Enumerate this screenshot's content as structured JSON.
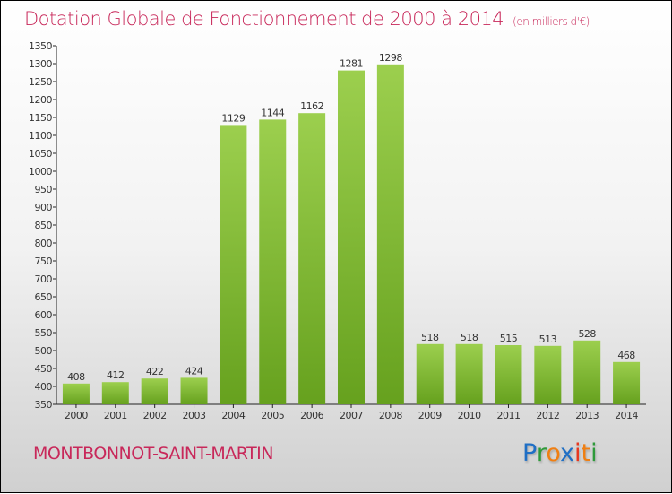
{
  "title": "Dotation Globale de Fonctionnement de 2000 à 2014",
  "unit_label": "(en milliers d'€)",
  "city": "MONTBONNOT-SAINT-MARTIN",
  "logo": {
    "letters": [
      "P",
      "r",
      "o",
      "x",
      "i",
      "t",
      "i"
    ],
    "colors": [
      "#1f6fc5",
      "#2e9a3a",
      "#f07f12",
      "#1f6fc5",
      "#e8361e",
      "#f07f12",
      "#2e9a3a"
    ]
  },
  "colors": {
    "bar_top": "#9ccf4e",
    "bar_bottom": "#66a11e",
    "title": "#c8285a"
  },
  "chart_data": {
    "type": "bar",
    "title": "Dotation Globale de Fonctionnement de 2000 à 2014",
    "xlabel": "",
    "ylabel": "",
    "categories": [
      "2000",
      "2001",
      "2002",
      "2003",
      "2004",
      "2005",
      "2006",
      "2007",
      "2008",
      "2009",
      "2010",
      "2011",
      "2012",
      "2013",
      "2014"
    ],
    "values": [
      408,
      412,
      422,
      424,
      1129,
      1144,
      1162,
      1281,
      1298,
      518,
      518,
      515,
      513,
      528,
      468
    ],
    "ylim": [
      350,
      1350
    ],
    "yticks": [
      350,
      400,
      450,
      500,
      550,
      600,
      650,
      700,
      750,
      800,
      850,
      900,
      950,
      1000,
      1050,
      1100,
      1150,
      1200,
      1250,
      1300,
      1350
    ],
    "grid": false,
    "legend": "none"
  }
}
